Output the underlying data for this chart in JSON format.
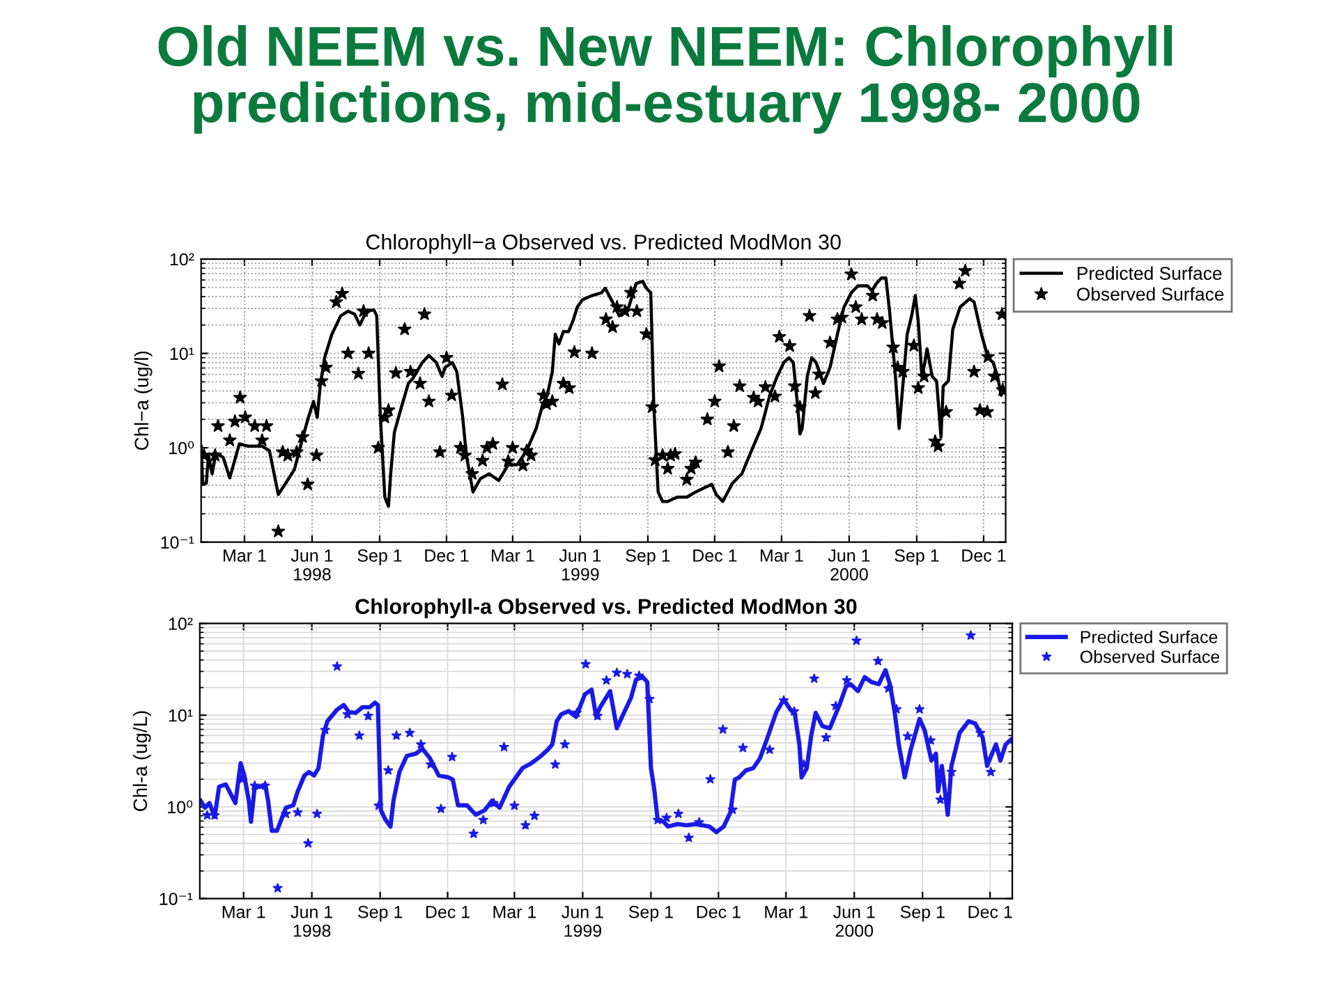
{
  "chart_data": [
    {
      "type": "line",
      "title": "Chlorophyll−a Observed vs. Predicted ModMon 30",
      "ylabel": "Chl−a (ug/l)",
      "annotations": [
        "Old NEEM vs. New NEEM: Chlorophyll predictions, mid-estuary 1998- 2000"
      ],
      "log": "y",
      "grid": true,
      "legend": "top right",
      "xlim": [
        "1998-01-01",
        "2000-12-31"
      ],
      "xticks": [
        {
          "value": "1998-03-01",
          "label": "Mar 1"
        },
        {
          "value": "1998-06-01",
          "label": "Jun 1\n1998"
        },
        {
          "value": "1998-09-01",
          "label": "Sep 1"
        },
        {
          "value": "1998-12-01",
          "label": "Dec 1"
        },
        {
          "value": "1999-03-01",
          "label": "Mar 1"
        },
        {
          "value": "1999-06-01",
          "label": "Jun 1\n1999"
        },
        {
          "value": "1999-09-01",
          "label": "Sep 1"
        },
        {
          "value": "1999-12-01",
          "label": "Dec 1"
        },
        {
          "value": "2000-03-01",
          "label": "Mar 1"
        },
        {
          "value": "2000-06-01",
          "label": "Jun 1\n2000"
        },
        {
          "value": "2000-09-01",
          "label": "Sep 1"
        },
        {
          "value": "2000-12-01",
          "label": "Dec 1"
        }
      ],
      "ylim": [
        0.1,
        100
      ],
      "yticks": [
        {
          "value": 0.1,
          "label": "10⁻¹"
        },
        {
          "value": 1,
          "label": "10⁰"
        },
        {
          "value": 10,
          "label": "10¹"
        },
        {
          "value": 100,
          "label": "10²"
        }
      ],
      "series": [
        {
          "name": "Predicted Surface",
          "marker": "none",
          "line_style": "solid",
          "color": "#000000",
          "x": [
            "1998-01-01",
            "1998-01-03",
            "1998-01-08",
            "1998-01-11",
            "1998-01-16",
            "1998-01-21",
            "1998-01-31",
            "1998-02-09",
            "1998-02-22",
            "1998-03-06",
            "1998-03-25",
            "1998-04-04",
            "1998-04-16",
            "1998-04-26",
            "1998-05-08",
            "1998-05-18",
            "1998-05-27",
            "1998-06-03",
            "1998-06-08",
            "1998-06-12",
            "1998-06-18",
            "1998-06-28",
            "1998-07-10",
            "1998-07-20",
            "1998-07-29",
            "1998-08-05",
            "1998-08-11",
            "1998-08-17",
            "1998-08-24",
            "1998-08-28",
            "1998-09-02",
            "1998-09-08",
            "1998-09-13",
            "1998-09-16",
            "1998-09-21",
            "1998-09-30",
            "1998-10-10",
            "1998-10-16",
            "1998-10-29",
            "1998-11-07",
            "1998-11-17",
            "1998-11-25",
            "1998-11-29",
            "1998-12-09",
            "1998-12-15",
            "1998-12-23",
            "1998-12-28",
            "1999-01-06",
            "1999-01-16",
            "1999-01-28",
            "1999-02-10",
            "1999-02-23",
            "1999-03-07",
            "1999-03-20",
            "1999-04-02",
            "1999-04-11",
            "1999-04-17",
            "1999-04-24",
            "1999-04-28",
            "1999-05-03",
            "1999-05-09",
            "1999-05-16",
            "1999-05-22",
            "1999-05-28",
            "1999-06-04",
            "1999-06-17",
            "1999-06-30",
            "1999-07-05",
            "1999-07-15",
            "1999-07-24",
            "1999-08-06",
            "1999-08-16",
            "1999-08-25",
            "1999-08-30",
            "1999-09-05",
            "1999-09-09",
            "1999-09-15",
            "1999-09-21",
            "1999-09-28",
            "1999-10-11",
            "1999-10-24",
            "1999-11-05",
            "1999-11-18",
            "1999-11-27",
            "1999-12-03",
            "1999-12-12",
            "1999-12-25",
            "2000-01-07",
            "2000-01-20",
            "2000-02-02",
            "2000-02-14",
            "2000-02-24",
            "2000-03-04",
            "2000-03-11",
            "2000-03-17",
            "2000-03-23",
            "2000-03-26",
            "2000-03-29",
            "2000-04-05",
            "2000-04-11",
            "2000-04-17",
            "2000-04-27",
            "2000-05-06",
            "2000-05-16",
            "2000-05-25",
            "2000-06-04",
            "2000-06-13",
            "2000-06-26",
            "2000-07-02",
            "2000-07-08",
            "2000-07-15",
            "2000-07-21",
            "2000-07-26",
            "2000-08-03",
            "2000-08-08",
            "2000-08-13",
            "2000-08-19",
            "2000-08-25",
            "2000-08-30",
            "2000-09-03",
            "2000-09-08",
            "2000-09-12",
            "2000-09-15",
            "2000-09-22",
            "2000-09-28",
            "2000-10-04",
            "2000-10-07",
            "2000-10-14",
            "2000-10-20",
            "2000-10-30",
            "2000-11-12",
            "2000-11-18",
            "2000-11-28",
            "2000-12-07",
            "2000-12-14",
            "2000-12-20",
            "2000-12-25",
            "2000-12-29"
          ],
          "values": [
            1.04,
            0.42,
            0.42,
            0.83,
            0.53,
            0.88,
            0.79,
            0.48,
            1.1,
            1.04,
            1.04,
            0.93,
            0.32,
            0.42,
            0.59,
            1.17,
            2.1,
            3.1,
            2.1,
            4.5,
            9.0,
            16,
            25,
            28,
            26,
            20,
            25,
            28,
            29,
            25,
            2.1,
            0.3,
            0.24,
            0.53,
            1.46,
            2.6,
            4.8,
            5.4,
            8.0,
            9.5,
            8.0,
            5.7,
            7.1,
            8.0,
            6.4,
            2.1,
            0.83,
            0.34,
            0.47,
            0.53,
            0.45,
            0.66,
            0.66,
            0.93,
            1.6,
            2.9,
            3.6,
            6.4,
            16,
            12.6,
            17,
            17,
            22,
            31,
            37,
            41,
            44,
            49,
            35,
            25,
            31,
            55,
            58,
            49,
            44,
            2.9,
            0.34,
            0.27,
            0.27,
            0.3,
            0.3,
            0.34,
            0.38,
            0.41,
            0.32,
            0.27,
            0.42,
            0.53,
            0.93,
            1.6,
            3.6,
            5.7,
            8.0,
            9.0,
            8.0,
            2.7,
            1.4,
            1.6,
            5.7,
            9.0,
            8.0,
            4.8,
            7.1,
            16,
            31,
            44,
            52,
            52,
            46,
            55,
            63,
            63,
            28,
            5.7,
            1.6,
            4.5,
            16,
            25,
            41,
            22,
            5.7,
            8.0,
            11.2,
            5.7,
            5.1,
            1.3,
            4.5,
            5.1,
            18,
            31,
            38,
            35,
            16,
            9.0,
            8.0,
            5.7,
            3.6,
            4.1
          ]
        },
        {
          "name": "Observed Surface",
          "type": "scatter",
          "marker": "star",
          "color": "#000000",
          "x": [
            "1998-01-05",
            "1998-01-20",
            "1998-01-24",
            "1998-02-09",
            "1998-02-16",
            "1998-02-23",
            "1998-03-02",
            "1998-03-15",
            "1998-03-25",
            "1998-03-31",
            "1998-04-16",
            "1998-04-22",
            "1998-04-29",
            "1998-05-11",
            "1998-05-19",
            "1998-05-26",
            "1998-06-07",
            "1998-06-14",
            "1998-06-20",
            "1998-07-04",
            "1998-07-12",
            "1998-07-20",
            "1998-08-03",
            "1998-08-10",
            "1998-08-17",
            "1998-08-30",
            "1998-09-08",
            "1998-09-13",
            "1998-09-23",
            "1998-10-05",
            "1998-10-13",
            "1998-10-26",
            "1998-11-01",
            "1998-11-07",
            "1998-11-22",
            "1998-12-01",
            "1998-12-08",
            "1998-12-20",
            "1998-12-26",
            "1999-01-05",
            "1999-01-19",
            "1999-01-25",
            "1999-02-02",
            "1999-02-15",
            "1999-02-23",
            "1999-03-01",
            "1999-03-15",
            "1999-03-20",
            "1999-03-26",
            "1999-04-12",
            "1999-04-16",
            "1999-04-24",
            "1999-05-09",
            "1999-05-17",
            "1999-05-24",
            "1999-06-17",
            "1999-07-06",
            "1999-07-15",
            "1999-07-21",
            "1999-08-01",
            "1999-08-09",
            "1999-08-17",
            "1999-08-30",
            "1999-09-07",
            "1999-09-11",
            "1999-09-21",
            "1999-09-28",
            "1999-10-02",
            "1999-10-08",
            "1999-10-24",
            "1999-10-30",
            "1999-11-05",
            "1999-11-21",
            "1999-12-01",
            "1999-12-07",
            "1999-12-19",
            "1999-12-27",
            "2000-01-04",
            "2000-01-23",
            "2000-01-29",
            "2000-02-08",
            "2000-02-21",
            "2000-02-27",
            "2000-03-12",
            "2000-03-19",
            "2000-03-26",
            "2000-04-08",
            "2000-04-16",
            "2000-04-21",
            "2000-05-06",
            "2000-05-16",
            "2000-05-22",
            "2000-06-04",
            "2000-06-10",
            "2000-06-18",
            "2000-07-03",
            "2000-07-09",
            "2000-07-16",
            "2000-07-31",
            "2000-08-06",
            "2000-08-13",
            "2000-08-28",
            "2000-09-03",
            "2000-09-11",
            "2000-09-26",
            "2000-09-30",
            "2000-10-11",
            "2000-10-29",
            "2000-11-06",
            "2000-11-18",
            "2000-11-26",
            "2000-12-06",
            "2000-12-07",
            "2000-12-16",
            "2000-12-26",
            "2000-12-27"
          ],
          "values": [
            0.83,
            0.83,
            1.7,
            1.2,
            1.9,
            3.4,
            2.1,
            1.7,
            1.2,
            1.7,
            0.13,
            0.9,
            0.83,
            0.9,
            1.3,
            0.41,
            0.83,
            5.1,
            7.1,
            35,
            43,
            10,
            6.1,
            28,
            10,
            1.0,
            2.1,
            2.5,
            6.2,
            18,
            6.4,
            4.8,
            26,
            3.1,
            0.9,
            9,
            3.6,
            1.0,
            0.83,
            0.53,
            0.73,
            1.0,
            1.1,
            4.7,
            0.72,
            1.0,
            0.65,
            0.93,
            0.83,
            3.6,
            2.9,
            3.1,
            4.8,
            4.3,
            10.3,
            10,
            23,
            19,
            31,
            28,
            44,
            28,
            16,
            2.7,
            0.74,
            0.83,
            0.6,
            0.83,
            0.86,
            0.46,
            0.6,
            0.7,
            2.0,
            3.1,
            7.3,
            0.9,
            1.7,
            4.5,
            3.4,
            3.1,
            4.4,
            3.5,
            15,
            12,
            4.5,
            2.7,
            25,
            3.8,
            6.0,
            13,
            23,
            24,
            69,
            31,
            23,
            41,
            23,
            21,
            11.6,
            7.1,
            6.4,
            12.1,
            4.3,
            5.7,
            1.17,
            1.04,
            2.4,
            55,
            75,
            6.4,
            2.5,
            2.4,
            9.2,
            5.7,
            26,
            4.1
          ]
        }
      ]
    },
    {
      "type": "line",
      "title": "Chlorophyll-a Observed vs. Predicted ModMon 30",
      "ylabel": "Chl-a (ug/L)",
      "log": "y",
      "grid": true,
      "legend": "top right",
      "xlim": [
        "1998-01-01",
        "2000-12-31"
      ],
      "xticks": [
        {
          "value": "1998-03-01",
          "label": "Mar 1"
        },
        {
          "value": "1998-06-01",
          "label": "Jun 1\n1998"
        },
        {
          "value": "1998-09-01",
          "label": "Sep 1"
        },
        {
          "value": "1998-12-01",
          "label": "Dec 1"
        },
        {
          "value": "1999-03-01",
          "label": "Mar 1"
        },
        {
          "value": "1999-06-01",
          "label": "Jun 1\n1999"
        },
        {
          "value": "1999-09-01",
          "label": "Sep 1"
        },
        {
          "value": "1999-12-01",
          "label": "Dec 1"
        },
        {
          "value": "2000-03-01",
          "label": "Mar 1"
        },
        {
          "value": "2000-06-01",
          "label": "Jun 1\n2000"
        },
        {
          "value": "2000-09-01",
          "label": "Sep 1"
        },
        {
          "value": "2000-12-01",
          "label": "Dec 1"
        }
      ],
      "ylim": [
        0.1,
        100
      ],
      "yticks": [
        {
          "value": 0.1,
          "label": "10⁻¹"
        },
        {
          "value": 1,
          "label": "10⁰"
        },
        {
          "value": 10,
          "label": "10¹"
        },
        {
          "value": 100,
          "label": "10²"
        }
      ],
      "series": [
        {
          "name": "Predicted Surface",
          "marker": "none",
          "line_style": "solid",
          "color": "#1a1ae6",
          "x": [
            "1998-01-02",
            "1998-01-08",
            "1998-01-14",
            "1998-01-21",
            "1998-01-27",
            "1998-02-05",
            "1998-02-18",
            "1998-02-25",
            "1998-03-02",
            "1998-03-08",
            "1998-03-11",
            "1998-03-16",
            "1998-03-24",
            "1998-03-30",
            "1998-04-03",
            "1998-04-08",
            "1998-04-15",
            "1998-04-27",
            "1998-05-07",
            "1998-05-13",
            "1998-05-22",
            "1998-05-28",
            "1998-06-04",
            "1998-06-10",
            "1998-06-16",
            "1998-06-22",
            "1998-07-05",
            "1998-07-14",
            "1998-07-21",
            "1998-07-30",
            "1998-08-08",
            "1998-08-18",
            "1998-08-25",
            "1998-08-29",
            "1998-09-02",
            "1998-09-08",
            "1998-09-15",
            "1998-09-19",
            "1998-09-27",
            "1998-10-07",
            "1998-10-19",
            "1998-10-28",
            "1998-11-07",
            "1998-11-19",
            "1998-12-02",
            "1998-12-08",
            "1998-12-15",
            "1998-12-27",
            "1999-01-08",
            "1999-01-20",
            "1999-01-30",
            "1999-02-09",
            "1999-02-22",
            "1999-03-03",
            "1999-03-12",
            "1999-03-24",
            "1999-04-06",
            "1999-04-15",
            "1999-04-21",
            "1999-04-27",
            "1999-05-03",
            "1999-05-13",
            "1999-05-23",
            "1999-06-04",
            "1999-06-13",
            "1999-06-19",
            "1999-06-25",
            "1999-07-08",
            "1999-07-17",
            "1999-07-27",
            "1999-08-05",
            "1999-08-12",
            "1999-08-21",
            "1999-08-27",
            "1999-09-01",
            "1999-09-05",
            "1999-09-10",
            "1999-09-18",
            "1999-09-24",
            "1999-10-07",
            "1999-10-19",
            "1999-10-31",
            "1999-11-19",
            "1999-11-28",
            "1999-12-08",
            "1999-12-17",
            "1999-12-23",
            "1999-12-29",
            "2000-01-07",
            "2000-01-17",
            "2000-01-26",
            "2000-02-04",
            "2000-02-17",
            "2000-02-27",
            "2000-03-07",
            "2000-03-13",
            "2000-03-19",
            "2000-03-22",
            "2000-03-29",
            "2000-04-04",
            "2000-04-10",
            "2000-04-19",
            "2000-04-29",
            "2000-05-12",
            "2000-05-21",
            "2000-05-27",
            "2000-06-06",
            "2000-06-15",
            "2000-06-24",
            "2000-07-04",
            "2000-07-13",
            "2000-07-19",
            "2000-07-25",
            "2000-07-31",
            "2000-08-08",
            "2000-08-16",
            "2000-08-28",
            "2000-09-04",
            "2000-09-13",
            "2000-09-19",
            "2000-09-22",
            "2000-09-27",
            "2000-10-02",
            "2000-10-05",
            "2000-10-10",
            "2000-10-21",
            "2000-11-02",
            "2000-11-11",
            "2000-11-21",
            "2000-11-27",
            "2000-12-03",
            "2000-12-09",
            "2000-12-15",
            "2000-12-22",
            "2000-12-29"
          ],
          "values": [
            1.17,
            0.98,
            1.1,
            0.78,
            1.66,
            1.76,
            1.1,
            3.0,
            2.2,
            1.17,
            0.69,
            1.66,
            1.66,
            1.76,
            1.17,
            0.55,
            0.55,
            0.98,
            1.04,
            1.48,
            2.2,
            2.4,
            2.2,
            2.65,
            6.0,
            8.6,
            11.5,
            12.9,
            10.8,
            10.6,
            12.2,
            12.2,
            13.7,
            12.9,
            0.92,
            0.73,
            0.61,
            1.17,
            2.4,
            3.6,
            3.8,
            4.3,
            3.4,
            2.2,
            2.1,
            1.98,
            1.04,
            1.04,
            0.82,
            0.92,
            1.17,
            0.98,
            1.66,
            2.1,
            2.65,
            3.0,
            3.6,
            4.2,
            4.8,
            8.6,
            10.2,
            11.1,
            9.6,
            16.9,
            19,
            9.8,
            12.4,
            18.3,
            7.2,
            10.8,
            15.4,
            24.5,
            26,
            23,
            2.65,
            1.66,
            0.73,
            0.69,
            0.61,
            0.65,
            0.63,
            0.65,
            0.61,
            0.53,
            0.61,
            0.87,
            1.98,
            2.1,
            2.5,
            2.65,
            3.4,
            5.4,
            10.8,
            14.8,
            11.5,
            10.2,
            4.8,
            2.1,
            2.65,
            6.0,
            10.6,
            7.6,
            7.2,
            12.9,
            20.6,
            21.8,
            18.3,
            26,
            23,
            21.8,
            31,
            21.8,
            11.5,
            4.8,
            2.1,
            4.2,
            9.1,
            6.8,
            3.2,
            3.8,
            1.48,
            2.8,
            1.3,
            0.82,
            2.8,
            6.4,
            8.6,
            8.1,
            5.7,
            2.8,
            3.7,
            4.8,
            3.2,
            4.8,
            5.4
          ]
        },
        {
          "name": "Observed Surface",
          "type": "scatter",
          "marker": "star",
          "color": "#1a1ae6",
          "x": [
            "1998-01-11",
            "1998-01-21",
            "1998-02-27",
            "1998-03-16",
            "1998-03-30",
            "1998-04-16",
            "1998-04-27",
            "1998-05-13",
            "1998-05-27",
            "1998-06-08",
            "1998-06-19",
            "1998-07-05",
            "1998-07-19",
            "1998-08-04",
            "1998-08-16",
            "1998-08-30",
            "1998-09-12",
            "1998-09-23",
            "1998-10-11",
            "1998-10-26",
            "1998-11-08",
            "1998-11-22",
            "1998-12-07",
            "1999-01-05",
            "1999-01-18",
            "1999-02-01",
            "1999-02-15",
            "1999-03-01",
            "1999-03-16",
            "1999-03-28",
            "1999-04-25",
            "1999-05-08",
            "1999-05-24",
            "1999-06-05",
            "1999-06-21",
            "1999-07-03",
            "1999-07-17",
            "1999-07-31",
            "1999-08-16",
            "1999-08-30",
            "1999-09-10",
            "1999-09-22",
            "1999-10-08",
            "1999-10-22",
            "1999-11-05",
            "1999-11-20",
            "1999-12-07",
            "1999-12-20",
            "2000-01-03",
            "2000-02-08",
            "2000-02-27",
            "2000-03-12",
            "2000-03-25",
            "2000-04-08",
            "2000-04-24",
            "2000-05-07",
            "2000-05-22",
            "2000-06-04",
            "2000-07-03",
            "2000-07-17",
            "2000-07-28",
            "2000-08-12",
            "2000-08-28",
            "2000-09-12",
            "2000-09-25",
            "2000-10-10",
            "2000-11-05",
            "2000-11-18",
            "2000-12-02"
          ],
          "values": [
            0.81,
            0.81,
            2.0,
            1.7,
            1.7,
            0.13,
            0.84,
            0.87,
            0.4,
            0.84,
            6.9,
            34,
            10.2,
            6.0,
            9.8,
            1.03,
            2.5,
            6.0,
            6.4,
            4.8,
            2.9,
            0.95,
            3.5,
            0.51,
            0.72,
            1.1,
            4.5,
            1.03,
            0.63,
            0.8,
            2.9,
            4.8,
            10.6,
            36,
            9.8,
            24,
            29,
            28,
            27,
            15,
            0.72,
            0.76,
            0.84,
            0.46,
            0.68,
            2.0,
            7.0,
            0.93,
            4.4,
            4.2,
            14.5,
            11,
            2.9,
            25,
            5.7,
            12.6,
            24,
            65,
            39,
            19.6,
            11.6,
            5.9,
            11.6,
            5.3,
            1.2,
            2.4,
            74,
            6.4,
            2.4
          ]
        }
      ]
    }
  ]
}
